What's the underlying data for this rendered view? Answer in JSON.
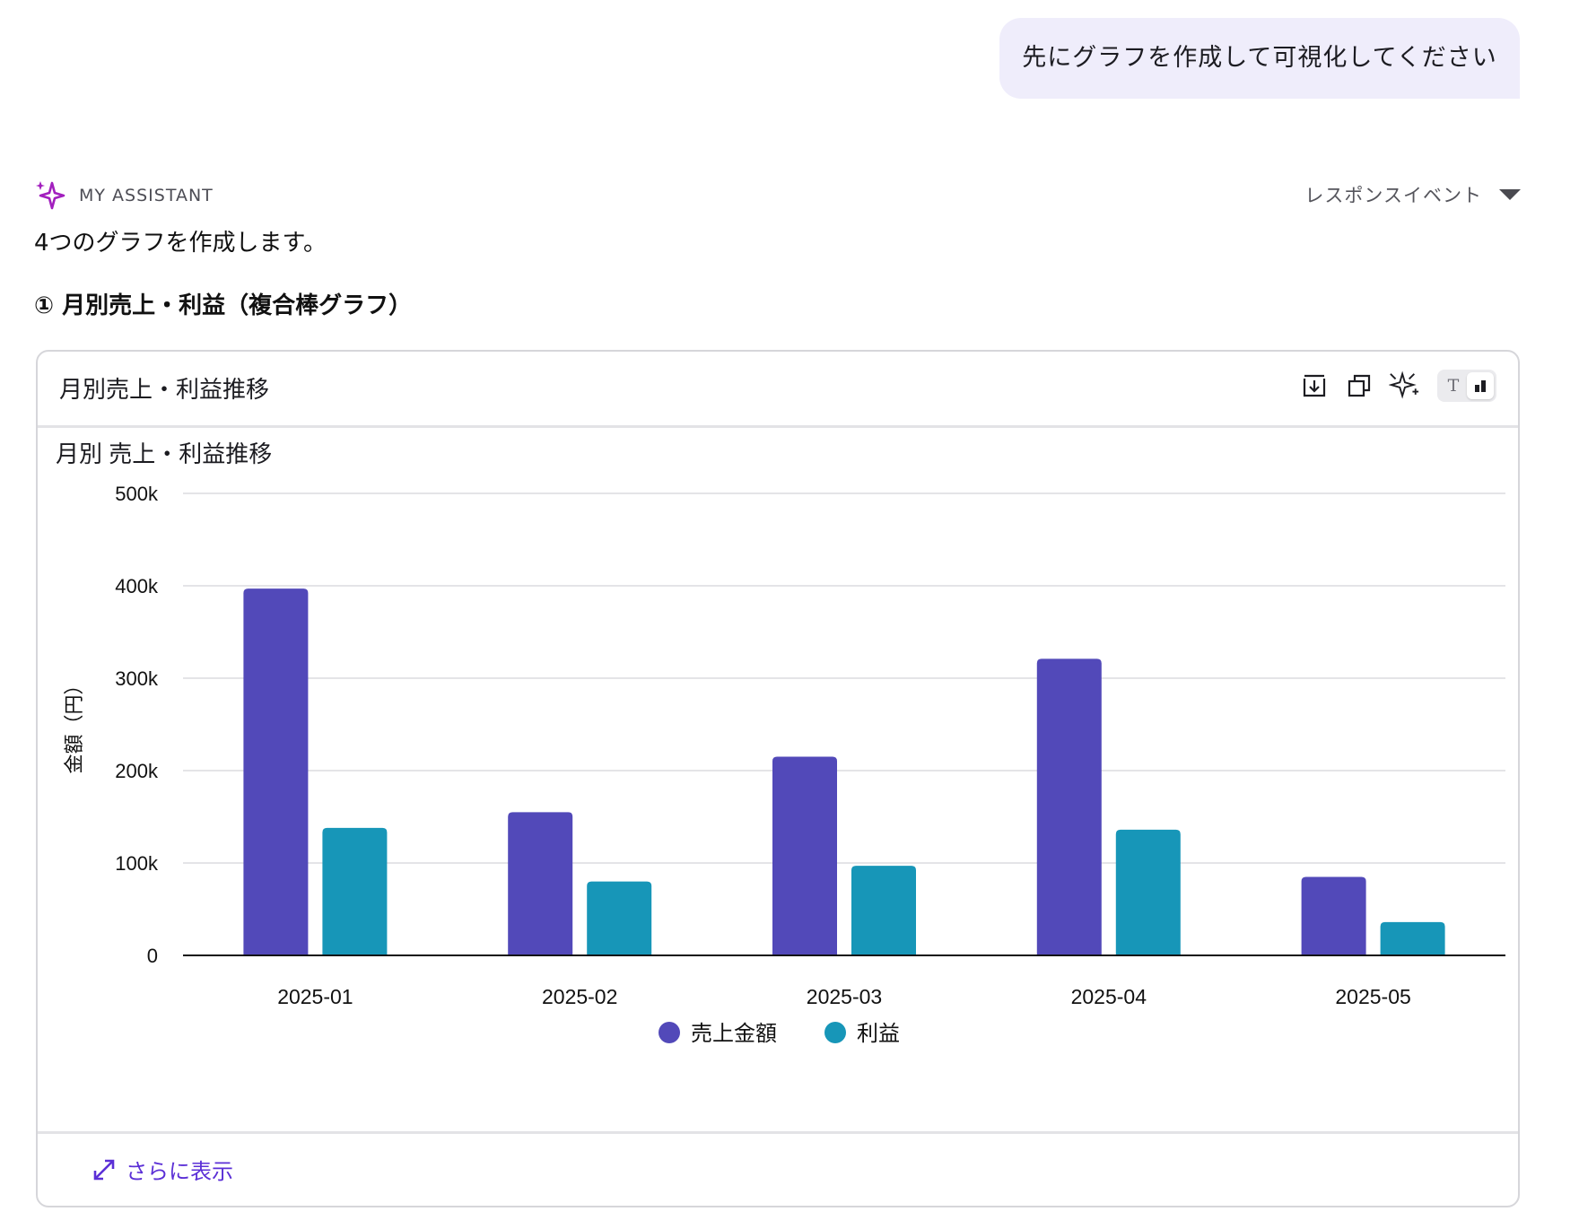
{
  "user_message": "先にグラフを作成して可視化してください",
  "assistant": {
    "name": "MY ASSISTANT",
    "response_events_label": "レスポンスイベント",
    "intro": "4つのグラフを作成します。",
    "section_title": "① 月別売上・利益（複合棒グラフ）"
  },
  "card": {
    "title": "月別売上・利益推移",
    "view_toggle": {
      "text": "T"
    },
    "footer_link": "さらに表示"
  },
  "colors": {
    "sales": "#5249b9",
    "profit": "#1796b8",
    "accent": "#5b2fd6",
    "sparkle": "#a21fbe"
  },
  "chart_data": {
    "type": "bar",
    "title": "月別 売上・利益推移",
    "xlabel": "",
    "ylabel": "金額（円）",
    "categories": [
      "2025-01",
      "2025-02",
      "2025-03",
      "2025-04",
      "2025-05"
    ],
    "series": [
      {
        "name": "売上金額",
        "values": [
          397000,
          155000,
          215000,
          321000,
          85000
        ]
      },
      {
        "name": "利益",
        "values": [
          138000,
          80000,
          97000,
          136000,
          36000
        ]
      }
    ],
    "ylim": [
      0,
      500000
    ],
    "yticks": [
      0,
      100000,
      200000,
      300000,
      400000,
      500000
    ],
    "ytick_labels": [
      "0",
      "100k",
      "200k",
      "300k",
      "400k",
      "500k"
    ],
    "grid": true,
    "legend": "bottom-center"
  }
}
